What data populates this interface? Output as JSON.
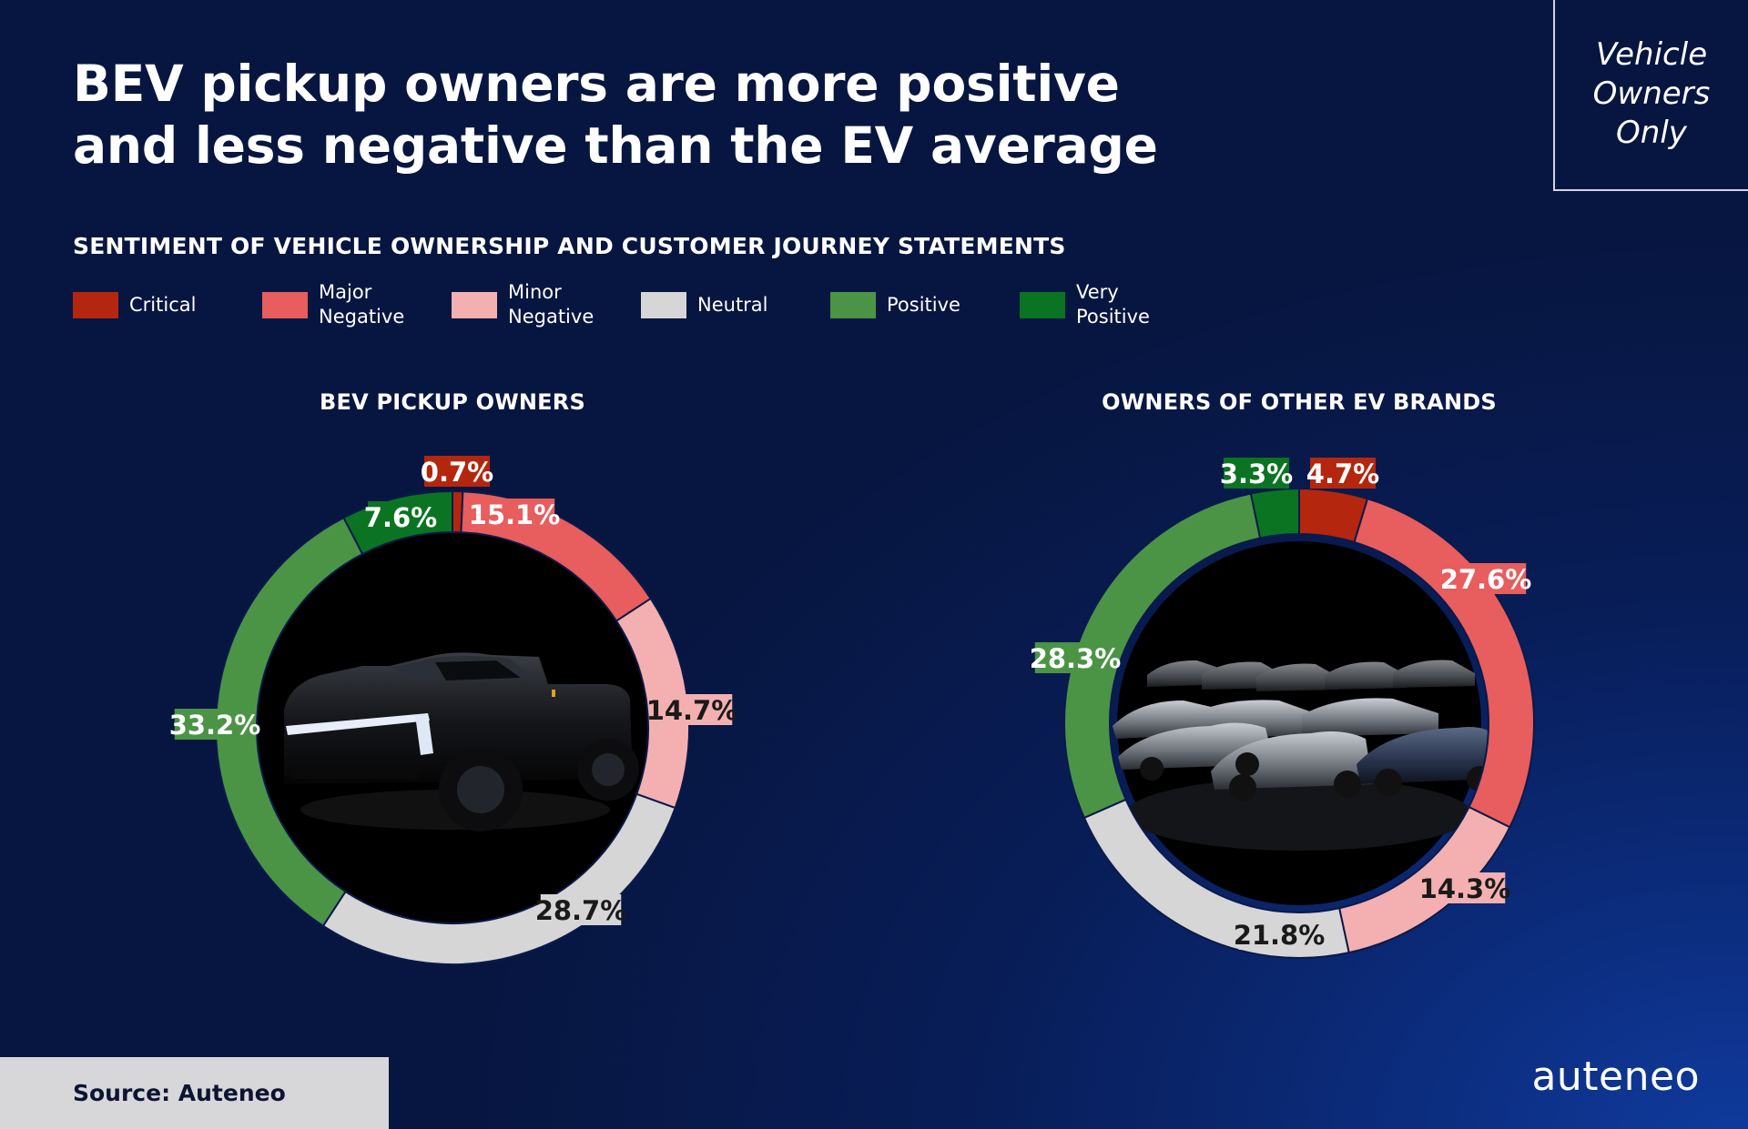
{
  "title": {
    "line1": "BEV pickup owners are more positive",
    "line2": "and less negative than the EV average"
  },
  "badge": {
    "line1": "Vehicle",
    "line2": "Owners",
    "line3": "Only"
  },
  "subtitle": "SENTIMENT OF VEHICLE OWNERSHIP AND CUSTOMER JOURNEY STATEMENTS",
  "legend": [
    {
      "label": "Critical",
      "color": "#b5260e"
    },
    {
      "label": "Major\nNegative",
      "color": "#e85d5d"
    },
    {
      "label": "Minor\nNegative",
      "color": "#f4b0b0"
    },
    {
      "label": "Neutral",
      "color": "#d6d6d6"
    },
    {
      "label": "Positive",
      "color": "#4b9446"
    },
    {
      "label": "Very\nPositive",
      "color": "#0a7422"
    }
  ],
  "chart_data": [
    {
      "type": "pie",
      "title": "BEV PICKUP OWNERS",
      "center_image": "black-pickup-truck",
      "categories": [
        "Critical",
        "Major Negative",
        "Minor Negative",
        "Neutral",
        "Positive",
        "Very Positive"
      ],
      "values": [
        0.7,
        15.1,
        14.7,
        28.7,
        33.2,
        7.6
      ],
      "labels": [
        "0.7%",
        "15.1%",
        "14.7%",
        "28.7%",
        "33.2%",
        "7.6%"
      ]
    },
    {
      "type": "pie",
      "title": "OWNERS OF OTHER EV BRANDS",
      "center_image": "fleet-of-electric-cars",
      "categories": [
        "Critical",
        "Major Negative",
        "Minor Negative",
        "Neutral",
        "Positive",
        "Very Positive"
      ],
      "values": [
        4.7,
        27.6,
        14.3,
        21.8,
        28.3,
        3.3
      ],
      "labels": [
        "4.7%",
        "27.6%",
        "14.3%",
        "21.8%",
        "28.3%",
        "3.3%"
      ]
    }
  ],
  "source": "Source: Auteneo",
  "logo": "auteneo"
}
